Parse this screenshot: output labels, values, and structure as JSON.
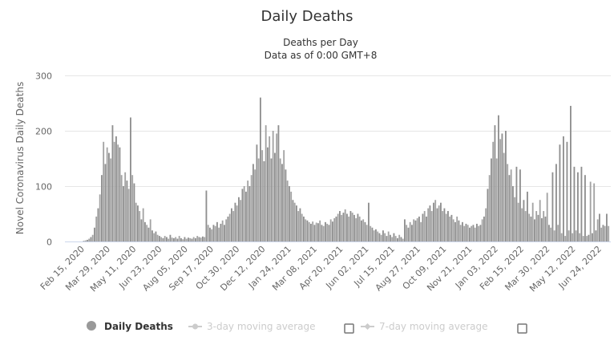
{
  "chart_data": {
    "type": "bar",
    "title": "Daily Deaths",
    "subtitle_lines": [
      "Deaths per Day",
      "Data as of 0:00 GMT+8"
    ],
    "xlabel": "",
    "ylabel": "Novel Coronavirus Daily Deaths",
    "ylim": [
      0,
      300
    ],
    "yticks": [
      0,
      100,
      200,
      300
    ],
    "grid": true,
    "start_date": "2020-01-17",
    "step_days": 3,
    "x_tick_first_offset_days": 29,
    "x_tick_step_days": 43,
    "x_tick_labels": [
      "Feb 15, 2020",
      "Mar 29, 2020",
      "May 11, 2020",
      "Jun 23, 2020",
      "Aug 05, 2020",
      "Sep 17, 2020",
      "Oct 30, 2020",
      "Dec 12, 2020",
      "Jan 24, 2021",
      "Mar 08, 2021",
      "Apr 20, 2021",
      "Jun 02, 2021",
      "Jul 15, 2021",
      "Aug 27, 2021",
      "Oct 09, 2021",
      "Nov 21, 2021",
      "Jan 03, 2022",
      "Feb 15, 2022",
      "Mar 30, 2022",
      "May 12, 2022",
      "Jun 24, 2022"
    ],
    "series": [
      {
        "name": "Daily Deaths",
        "color": "#999999",
        "values": [
          0,
          0,
          0,
          0,
          0,
          0,
          0,
          0,
          0,
          0,
          1,
          2,
          3,
          5,
          8,
          12,
          25,
          45,
          60,
          85,
          120,
          180,
          140,
          170,
          160,
          150,
          210,
          180,
          190,
          175,
          170,
          120,
          100,
          125,
          110,
          95,
          224,
          120,
          105,
          70,
          65,
          55,
          40,
          60,
          35,
          30,
          25,
          40,
          20,
          15,
          18,
          12,
          10,
          8,
          6,
          10,
          8,
          5,
          12,
          7,
          6,
          8,
          5,
          10,
          6,
          4,
          8,
          5,
          7,
          6,
          5,
          8,
          6,
          10,
          8,
          7,
          9,
          8,
          92,
          30,
          25,
          22,
          30,
          28,
          35,
          25,
          32,
          38,
          30,
          40,
          45,
          50,
          60,
          55,
          70,
          65,
          80,
          75,
          95,
          100,
          90,
          110,
          100,
          120,
          140,
          130,
          175,
          150,
          260,
          165,
          145,
          210,
          170,
          190,
          150,
          200,
          160,
          195,
          210,
          150,
          140,
          165,
          130,
          110,
          100,
          90,
          75,
          70,
          65,
          55,
          60,
          50,
          45,
          40,
          38,
          35,
          32,
          36,
          30,
          34,
          33,
          38,
          30,
          28,
          35,
          32,
          30,
          40,
          36,
          42,
          45,
          50,
          55,
          48,
          52,
          58,
          50,
          45,
          55,
          52,
          48,
          42,
          50,
          45,
          38,
          40,
          35,
          30,
          70,
          28,
          25,
          20,
          22,
          18,
          15,
          12,
          20,
          15,
          10,
          18,
          12,
          8,
          15,
          10,
          6,
          12,
          8,
          5,
          40,
          30,
          25,
          35,
          30,
          40,
          38,
          42,
          45,
          35,
          50,
          55,
          45,
          60,
          65,
          55,
          70,
          75,
          60,
          65,
          70,
          55,
          60,
          50,
          55,
          45,
          48,
          40,
          35,
          45,
          38,
          30,
          35,
          28,
          32,
          30,
          25,
          28,
          30,
          25,
          32,
          28,
          30,
          40,
          45,
          60,
          95,
          120,
          150,
          180,
          210,
          150,
          228,
          185,
          195,
          160,
          200,
          140,
          120,
          130,
          100,
          80,
          135,
          70,
          130,
          60,
          75,
          55,
          90,
          50,
          45,
          70,
          40,
          55,
          48,
          75,
          42,
          55,
          45,
          88,
          30,
          25,
          125,
          20,
          140,
          30,
          175,
          15,
          190,
          10,
          180,
          20,
          245,
          15,
          135,
          20,
          125,
          15,
          135,
          10,
          120,
          10,
          12,
          108,
          15,
          105,
          20,
          40,
          50,
          25,
          30,
          28,
          50,
          28
        ]
      },
      {
        "name": "3-day moving average",
        "visible": false,
        "color": "#cccccc"
      },
      {
        "name": "7-day moving average",
        "visible": false,
        "color": "#cccccc"
      }
    ],
    "legend_position": "bottom"
  }
}
